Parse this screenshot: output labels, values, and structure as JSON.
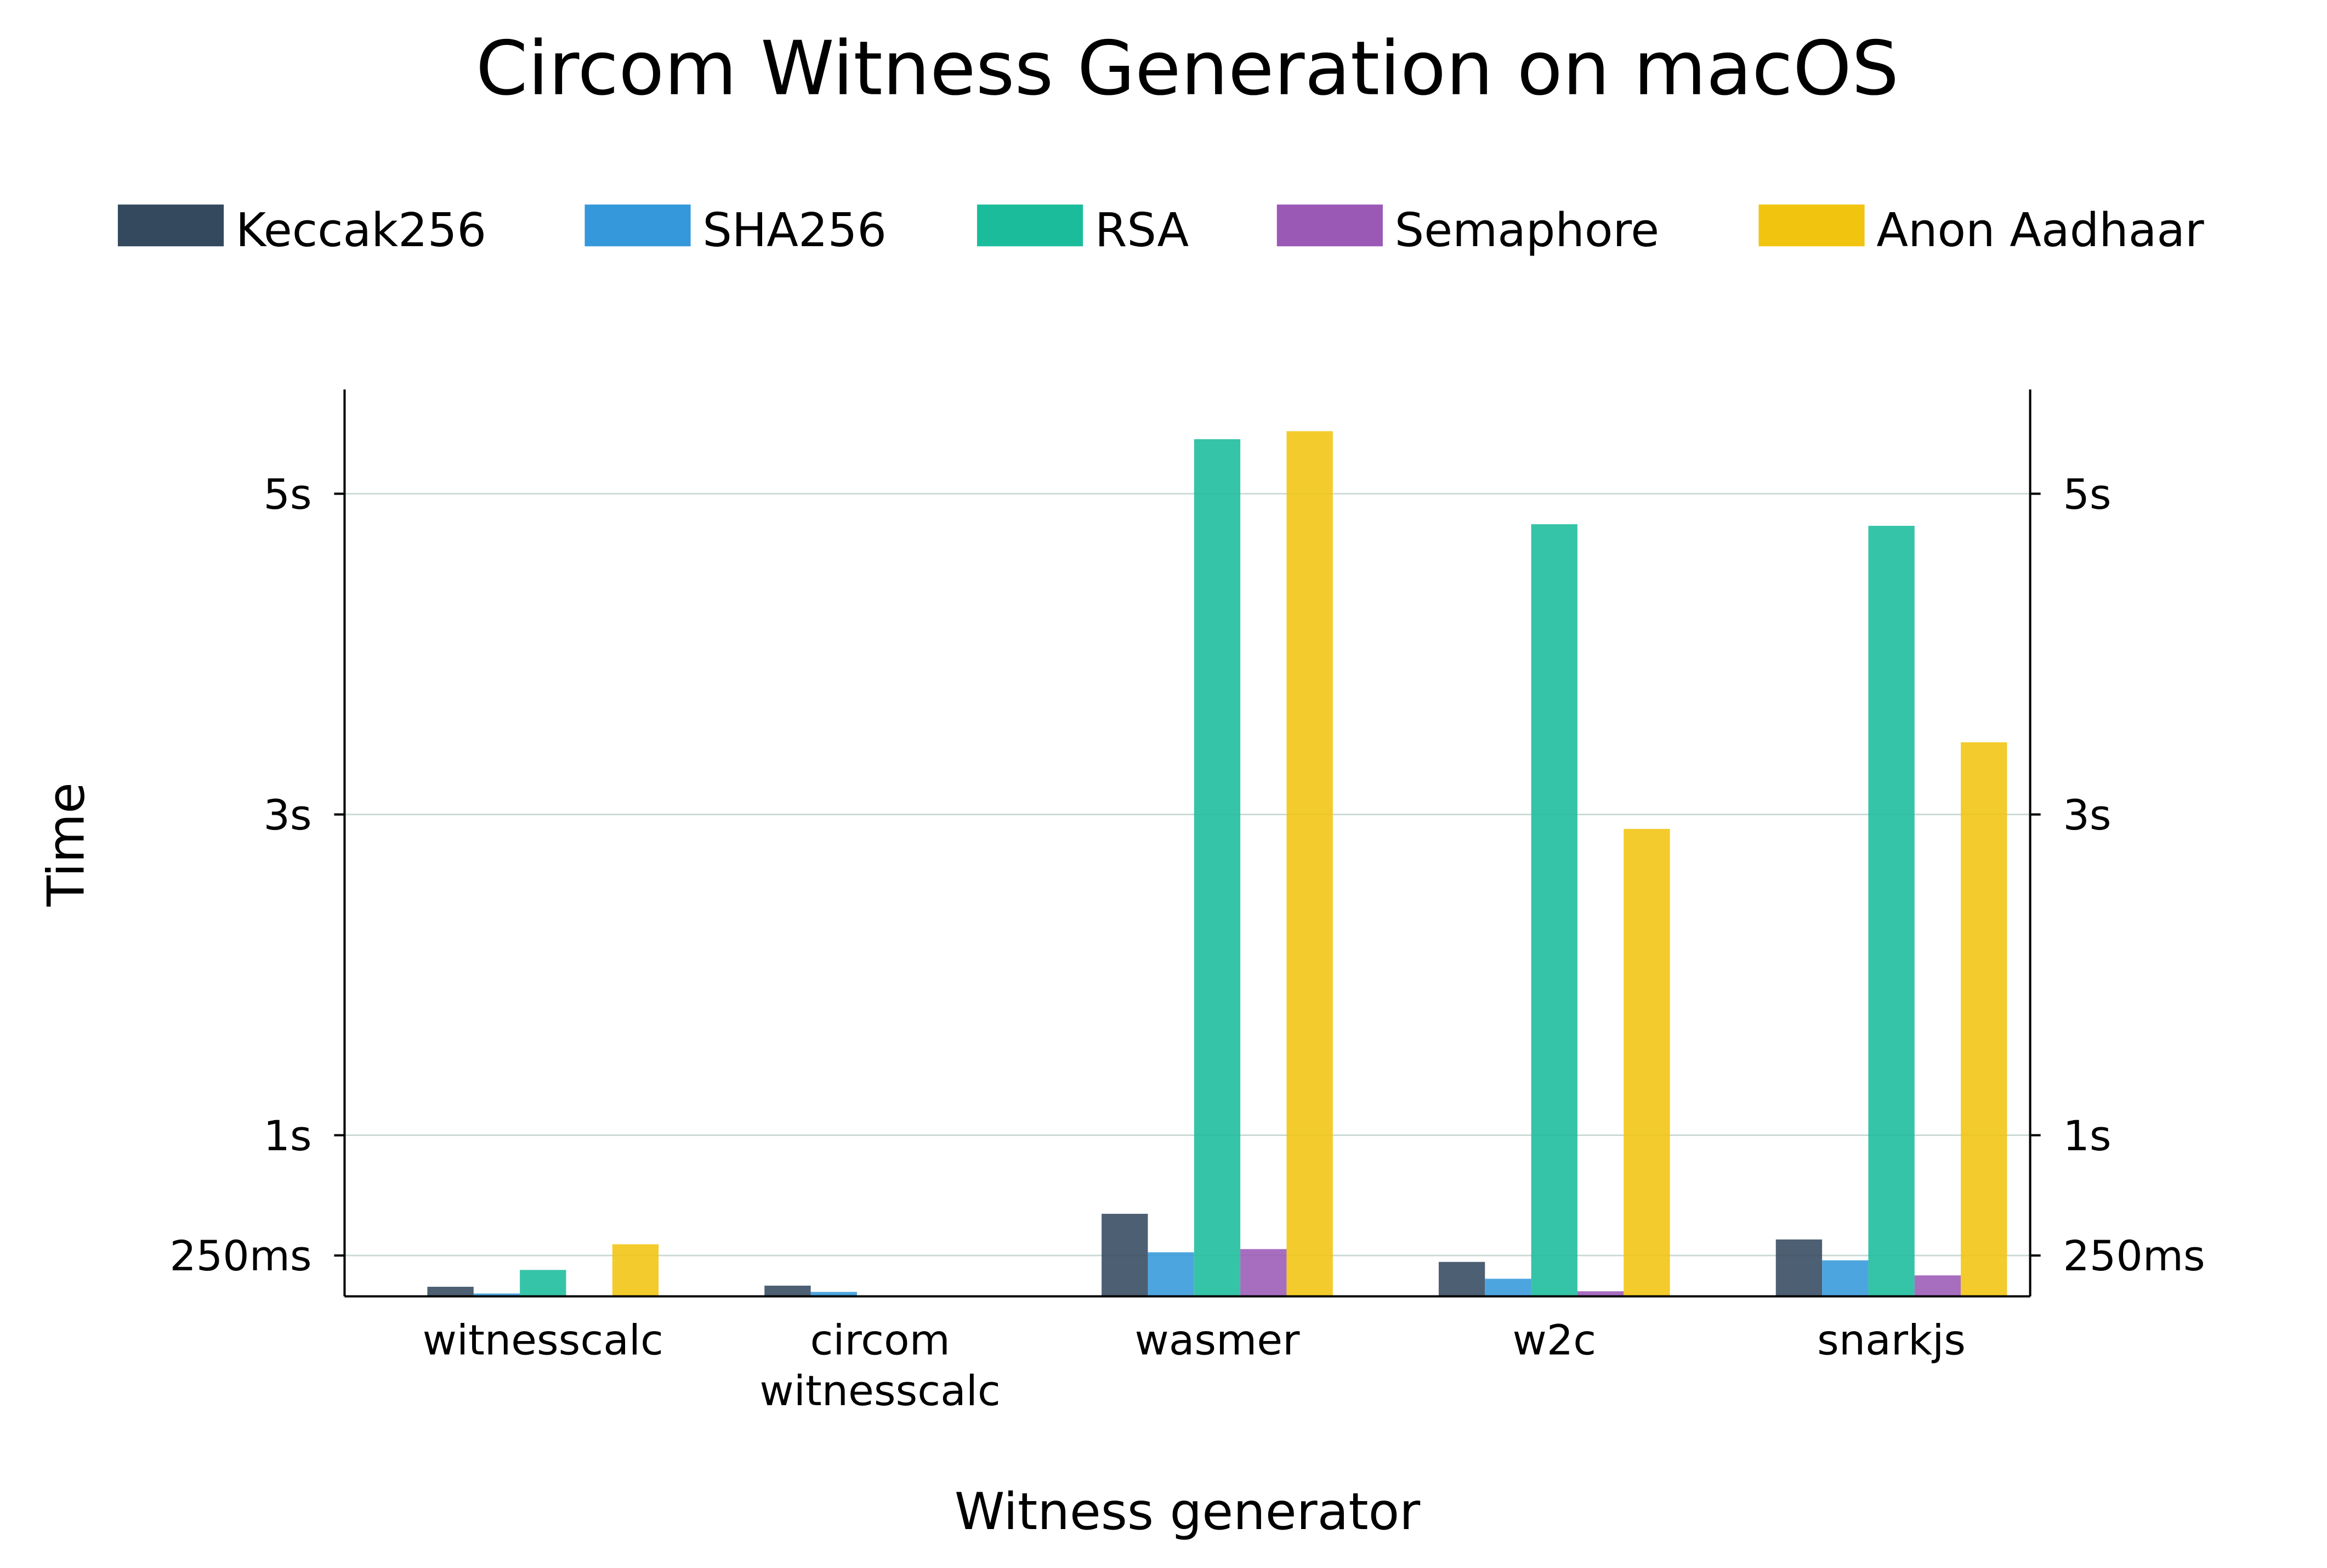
{
  "chart_data": {
    "type": "bar",
    "title": "Circom Witness Generation on macOS",
    "xlabel": "Witness generator",
    "ylabel": "Time",
    "categories": [
      [
        "witnesscalc"
      ],
      [
        "circom",
        "witnesscalc"
      ],
      [
        "wasmer"
      ],
      [
        "w2c"
      ],
      [
        "snarkjs"
      ]
    ],
    "ylim": [
      0,
      5.65
    ],
    "y_unit": "s",
    "yticks": [
      {
        "value": 0.25,
        "label": "250ms"
      },
      {
        "value": 1,
        "label": "1s"
      },
      {
        "value": 3,
        "label": "3s"
      },
      {
        "value": 5,
        "label": "5s"
      }
    ],
    "grid": true,
    "legend_position": "top",
    "series": [
      {
        "name": "Keccak256",
        "color": "#34495e",
        "values": [
          0.055,
          0.062,
          0.51,
          0.21,
          0.35
        ]
      },
      {
        "name": "SHA256",
        "color": "#3498db",
        "values": [
          0.013,
          0.023,
          0.27,
          0.105,
          0.22
        ]
      },
      {
        "name": "RSA",
        "color": "#1abc9c",
        "values": [
          0.16,
          0,
          5.34,
          4.81,
          4.8
        ]
      },
      {
        "name": "Semaphore",
        "color": "#9b59b6",
        "values": [
          0,
          0,
          0.29,
          0.027,
          0.126
        ]
      },
      {
        "name": "Anon Aadhaar",
        "color": "#f1c40f",
        "values": [
          0.32,
          0,
          5.39,
          2.91,
          3.45
        ]
      }
    ]
  }
}
